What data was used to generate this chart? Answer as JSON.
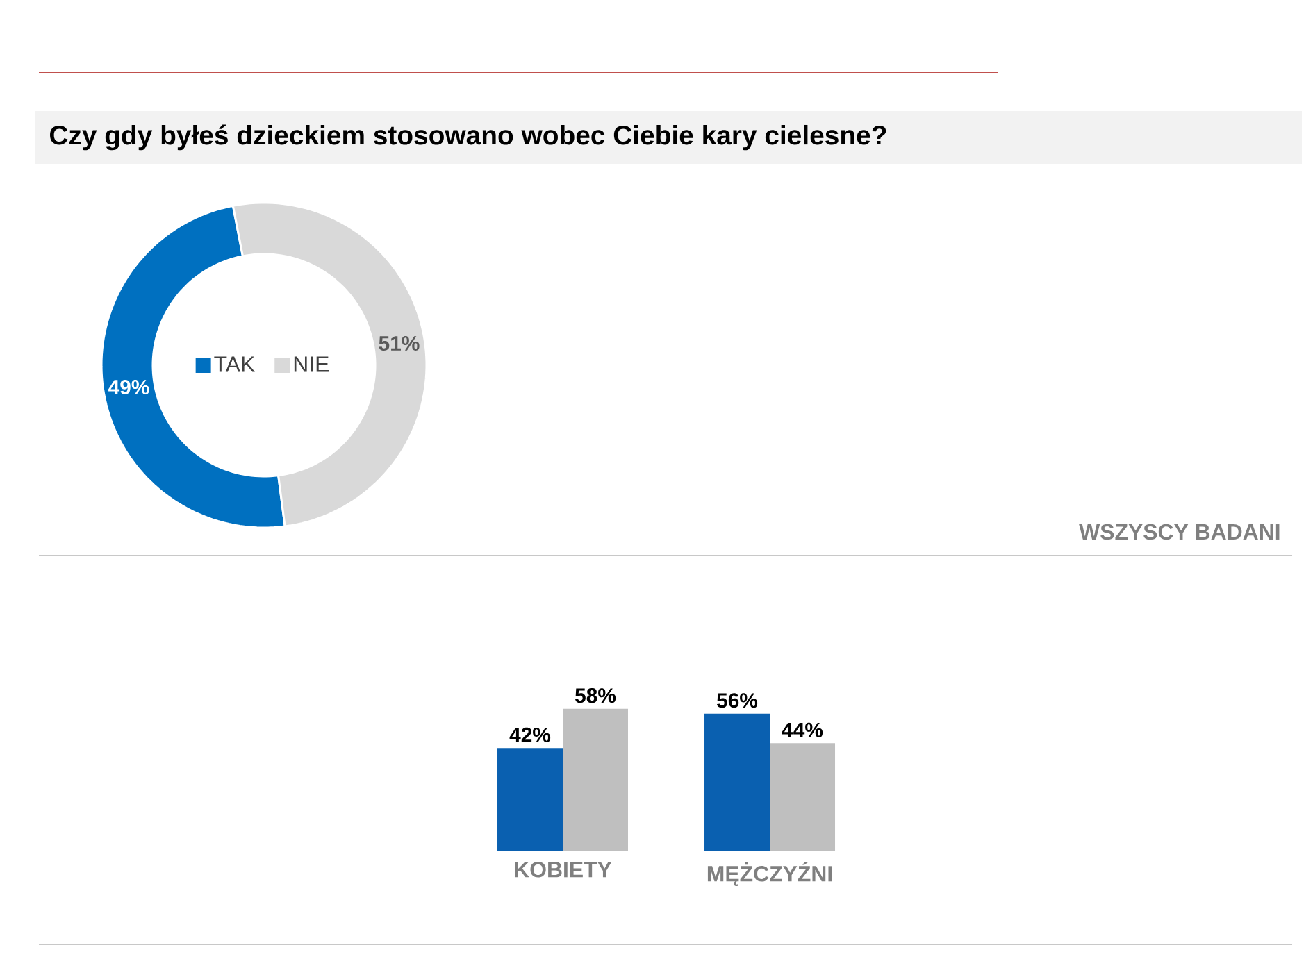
{
  "chart_data": [
    {
      "type": "donut",
      "title": "Czy gdy byłeś dzieckiem stosowano wobec Ciebie kary cielesne?",
      "categories": [
        "TAK",
        "NIE"
      ],
      "values": [
        49,
        51
      ],
      "colors": [
        "#0070c0",
        "#d9d9d9"
      ],
      "value_labels": [
        "49%",
        "51%"
      ],
      "legend": "center",
      "annotations": [
        "WSZYSCY BADANI"
      ]
    },
    {
      "type": "bar",
      "categories": [
        "KOBIETY",
        "MĘŻCZYŹNI"
      ],
      "series": [
        {
          "color": "#0a60b0",
          "values": [
            42,
            56
          ],
          "value_labels": [
            "42%",
            "56%"
          ]
        },
        {
          "color": "#bfbfbf",
          "values": [
            58,
            44
          ],
          "value_labels": [
            "58%",
            "44%"
          ]
        }
      ]
    }
  ]
}
